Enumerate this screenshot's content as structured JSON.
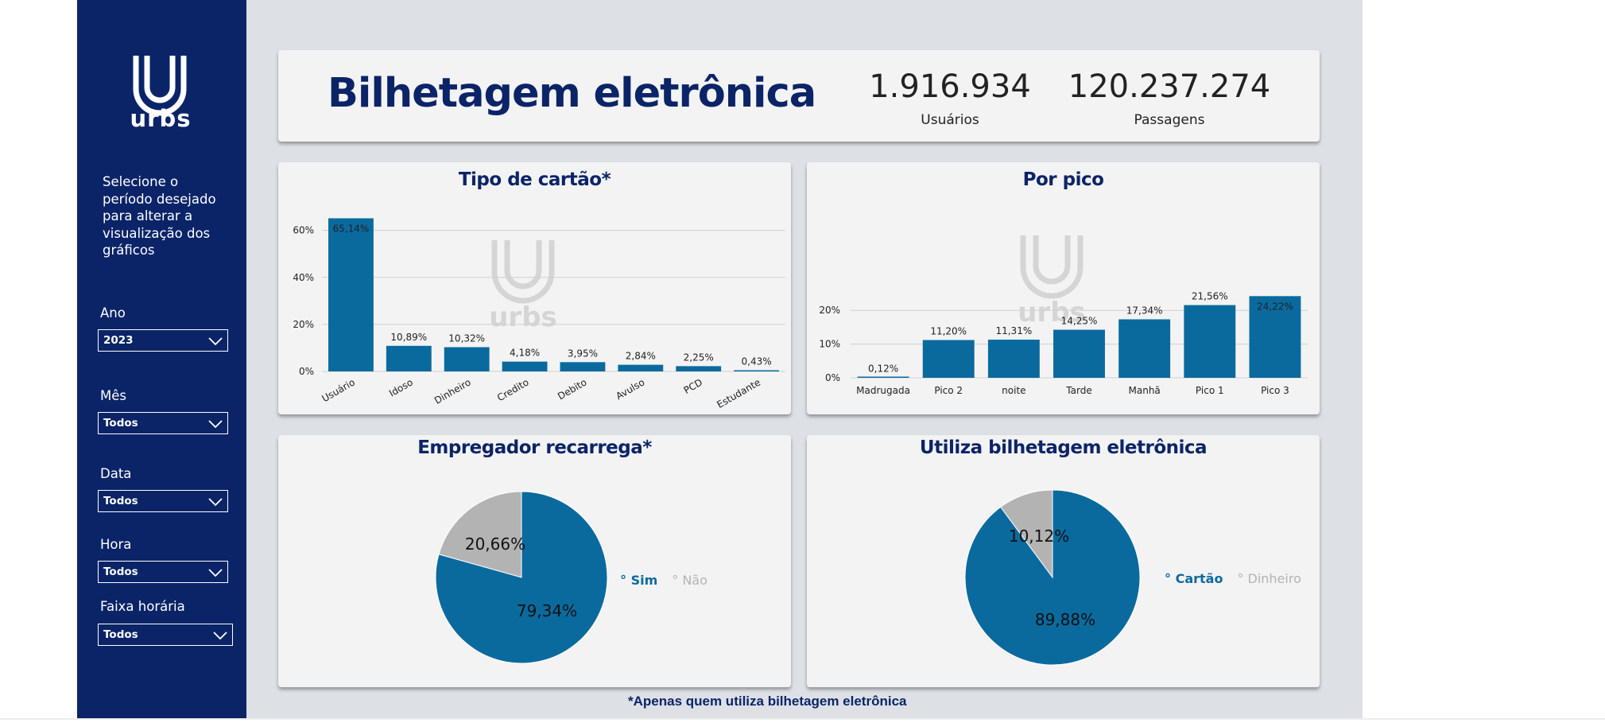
{
  "sidebar": {
    "logo_text": "urbs",
    "instructions": "Selecione o período desejado para alterar a visualização dos gráficos",
    "filters": [
      {
        "label": "Ano",
        "value": "2023"
      },
      {
        "label": "Mês",
        "value": "Todos"
      },
      {
        "label": "Data",
        "value": "Todos"
      },
      {
        "label": "Hora",
        "value": "Todos"
      },
      {
        "label": "Faixa horária",
        "value": "Todos"
      }
    ]
  },
  "header": {
    "title": "Bilhetagem eletrônica",
    "kpis": [
      {
        "value": "1.916.934",
        "label": "Usuários"
      },
      {
        "value": "120.237.274",
        "label": "Passagens"
      }
    ]
  },
  "footnote": "*Apenas quem utiliza bilhetagem eletrônica",
  "colors": {
    "sidebar": "#0b2468",
    "bar": "#0a6a9e",
    "pie_secondary": "#b3b3b3",
    "title": "#0b2468"
  },
  "chart_data": [
    {
      "type": "bar",
      "title": "Tipo de cartão*",
      "categories": [
        "Usuário",
        "Idoso",
        "Dinheiro",
        "Credito",
        "Debito",
        "Avulso",
        "PCD",
        "Estudante"
      ],
      "values": [
        65.14,
        10.89,
        10.32,
        4.18,
        3.95,
        2.84,
        2.25,
        0.43
      ],
      "labels": [
        "65,14%",
        "10,89%",
        "10,32%",
        "4,18%",
        "3,95%",
        "2,84%",
        "2,25%",
        "0,43%"
      ],
      "yticks": [
        "0%",
        "20%",
        "40%",
        "60%"
      ],
      "ylim": [
        0,
        68
      ],
      "grid": true
    },
    {
      "type": "bar",
      "title": "Por pico",
      "categories": [
        "Madrugada",
        "Pico 2",
        "noite",
        "Tarde",
        "Manhã",
        "Pico 1",
        "Pico 3"
      ],
      "values": [
        0.12,
        11.2,
        11.31,
        14.25,
        17.34,
        21.56,
        24.22
      ],
      "labels": [
        "0,12%",
        "11,20%",
        "11,31%",
        "14,25%",
        "17,34%",
        "21,56%",
        "24,22%"
      ],
      "yticks": [
        "0%",
        "10%",
        "20%"
      ],
      "ylim": [
        0,
        25
      ],
      "grid": true
    },
    {
      "type": "pie",
      "title": "Empregador recarrega*",
      "slices": [
        {
          "name": "Sim",
          "value": 79.34,
          "label": "79,34%",
          "color": "#0a6a9e"
        },
        {
          "name": "Não",
          "value": 20.66,
          "label": "20,66%",
          "color": "#b3b3b3"
        }
      ],
      "legend": "right"
    },
    {
      "type": "pie",
      "title": "Utiliza bilhetagem eletrônica",
      "slices": [
        {
          "name": "Cartão",
          "value": 89.88,
          "label": "89,88%",
          "color": "#0a6a9e"
        },
        {
          "name": "Dinheiro",
          "value": 10.12,
          "label": "10,12%",
          "color": "#b3b3b3"
        }
      ],
      "legend": "right"
    }
  ]
}
